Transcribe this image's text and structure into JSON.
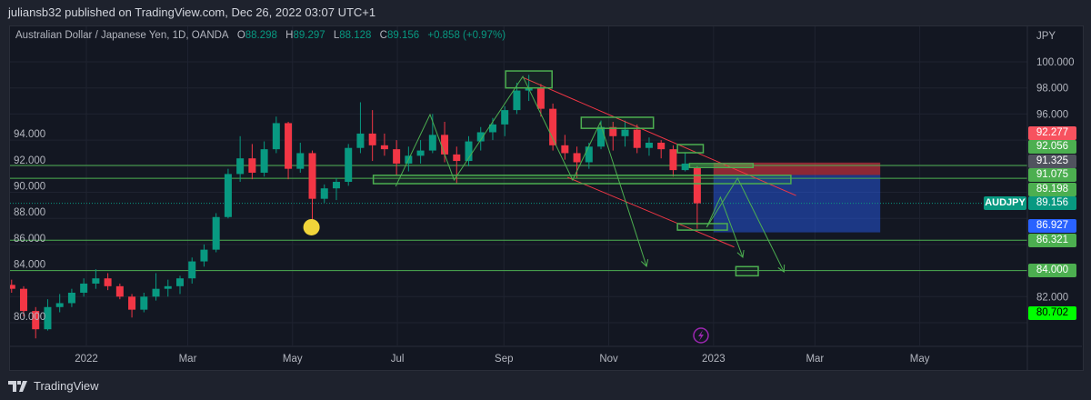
{
  "header": {
    "publisher_line": "juliansb32 published on TradingView.com, Dec 26, 2022 03:07 UTC+1"
  },
  "legend": {
    "title": "Australian Dollar / Japanese Yen, 1D, OANDA",
    "open_key": "O",
    "open": "88.298",
    "high_key": "H",
    "high": "89.297",
    "low_key": "L",
    "low": "88.128",
    "close_key": "C",
    "close": "89.156",
    "change": "+0.858 (+0.97%)"
  },
  "footer": {
    "brand": "TradingView"
  },
  "colors": {
    "up": "#089981",
    "down": "#f23645",
    "drawing": "#4caf50",
    "trend": "#f23645",
    "background": "#131722"
  },
  "chart_data": {
    "type": "candlestick",
    "currency_label": "JPY",
    "symbol": "AUDJPY",
    "last_price": "89.156",
    "ylim": [
      79.7,
      101.3
    ],
    "yticks": [
      "80.000",
      "82.000",
      "84.000",
      "86.000",
      "88.000",
      "90.000",
      "92.000",
      "94.000",
      "96.000",
      "98.000",
      "100.000"
    ],
    "xticks": [
      {
        "label": "2022",
        "date": "2022-01-01"
      },
      {
        "label": "Mar",
        "date": "2022-03-01"
      },
      {
        "label": "May",
        "date": "2022-05-01"
      },
      {
        "label": "Jul",
        "date": "2022-07-01"
      },
      {
        "label": "Sep",
        "date": "2022-09-01"
      },
      {
        "label": "Nov",
        "date": "2022-11-01"
      },
      {
        "label": "2023",
        "date": "2023-01-01"
      },
      {
        "label": "Mar",
        "date": "2023-03-01"
      },
      {
        "label": "May",
        "date": "2023-05-01"
      }
    ],
    "candles_weekly_start": "2021-11-15",
    "candles": [
      [
        82.9,
        83.3,
        82.3,
        82.6
      ],
      [
        82.6,
        82.8,
        80.5,
        80.9
      ],
      [
        80.9,
        81.2,
        78.8,
        79.5
      ],
      [
        79.5,
        81.8,
        79.4,
        81.2
      ],
      [
        81.2,
        82.2,
        80.8,
        81.5
      ],
      [
        81.5,
        82.6,
        81.2,
        82.3
      ],
      [
        82.3,
        83.4,
        82.0,
        83.0
      ],
      [
        83.0,
        84.1,
        82.6,
        83.4
      ],
      [
        83.4,
        83.8,
        82.5,
        82.8
      ],
      [
        82.8,
        83.0,
        81.8,
        82.0
      ],
      [
        82.0,
        82.2,
        80.4,
        81.0
      ],
      [
        81.0,
        82.3,
        80.8,
        82.0
      ],
      [
        82.0,
        83.8,
        81.7,
        82.6
      ],
      [
        82.6,
        83.3,
        82.0,
        82.8
      ],
      [
        82.8,
        83.6,
        82.2,
        83.4
      ],
      [
        83.4,
        85.0,
        83.0,
        84.7
      ],
      [
        84.7,
        86.0,
        84.3,
        85.6
      ],
      [
        85.6,
        88.4,
        85.4,
        88.1
      ],
      [
        88.1,
        91.8,
        88.0,
        91.4
      ],
      [
        91.4,
        94.3,
        90.8,
        92.6
      ],
      [
        92.6,
        93.7,
        91.0,
        91.5
      ],
      [
        91.5,
        93.9,
        91.2,
        93.3
      ],
      [
        93.3,
        95.8,
        93.0,
        95.3
      ],
      [
        95.3,
        95.4,
        91.0,
        91.8
      ],
      [
        91.8,
        93.8,
        91.5,
        93.0
      ],
      [
        93.0,
        93.2,
        87.9,
        89.5
      ],
      [
        89.5,
        90.6,
        89.2,
        90.3
      ],
      [
        90.3,
        91.1,
        89.4,
        90.8
      ],
      [
        90.8,
        93.7,
        90.5,
        93.4
      ],
      [
        93.4,
        96.9,
        93.0,
        94.5
      ],
      [
        94.5,
        96.3,
        92.4,
        93.6
      ],
      [
        93.6,
        94.5,
        92.8,
        93.3
      ],
      [
        93.3,
        94.0,
        91.3,
        92.2
      ],
      [
        92.2,
        93.5,
        91.6,
        92.8
      ],
      [
        92.8,
        94.0,
        92.2,
        93.2
      ],
      [
        93.2,
        96.0,
        93.0,
        94.4
      ],
      [
        94.4,
        95.4,
        92.3,
        92.9
      ],
      [
        92.9,
        93.5,
        90.7,
        92.4
      ],
      [
        92.4,
        94.3,
        92.0,
        93.9
      ],
      [
        93.9,
        95.0,
        93.2,
        94.6
      ],
      [
        94.6,
        95.7,
        94.0,
        95.2
      ],
      [
        95.2,
        96.6,
        94.3,
        96.3
      ],
      [
        96.3,
        98.4,
        96.0,
        97.8
      ],
      [
        97.8,
        99.0,
        97.0,
        98.0
      ],
      [
        98.0,
        98.3,
        95.8,
        96.4
      ],
      [
        96.4,
        96.8,
        93.2,
        93.6
      ],
      [
        93.6,
        94.4,
        92.5,
        93.0
      ],
      [
        93.0,
        93.5,
        91.1,
        92.3
      ],
      [
        92.3,
        93.8,
        91.8,
        93.5
      ],
      [
        93.5,
        95.5,
        93.3,
        95.0
      ],
      [
        95.0,
        95.4,
        93.2,
        94.3
      ],
      [
        94.3,
        95.5,
        93.5,
        94.8
      ],
      [
        94.8,
        95.2,
        93.0,
        93.4
      ],
      [
        93.4,
        94.2,
        92.8,
        93.8
      ],
      [
        93.8,
        94.0,
        92.6,
        93.3
      ],
      [
        93.3,
        93.6,
        91.2,
        91.7
      ],
      [
        91.7,
        93.0,
        91.6,
        92.2
      ],
      [
        91.9,
        92.0,
        87.2,
        89.156
      ]
    ],
    "horizontal_lines": [
      92.056,
      91.075,
      86.321,
      84.0
    ],
    "price_labels": [
      {
        "value": "92.277",
        "color": "#f7525f",
        "text_color": "#ffffff"
      },
      {
        "value": "92.056",
        "color": "#4caf50",
        "text_color": "#ffffff"
      },
      {
        "value": "91.325",
        "color": "#50535e",
        "text_color": "#ffffff"
      },
      {
        "value": "91.075",
        "color": "#4caf50",
        "text_color": "#ffffff"
      },
      {
        "value": "89.198",
        "color": "#4caf50",
        "text_color": "#ffffff"
      },
      {
        "value": "89.156",
        "color": "#089981",
        "text_color": "#ffffff"
      },
      {
        "value": "86.927",
        "color": "#2962ff",
        "text_color": "#ffffff"
      },
      {
        "value": "86.321",
        "color": "#4caf50",
        "text_color": "#ffffff"
      },
      {
        "value": "84.000",
        "color": "#4caf50",
        "text_color": "#ffffff"
      },
      {
        "value": "80.702",
        "color": "#00ff00",
        "text_color": "#000000"
      }
    ],
    "position": {
      "start": "2023-01-01",
      "end": "2023-04-08",
      "stop": 92.277,
      "entry": 91.325,
      "target": 86.927
    },
    "rectangles": [
      {
        "from": "2022-09-02",
        "to": "2022-09-29",
        "top": 99.3,
        "bottom": 98.0
      },
      {
        "from": "2022-10-16",
        "to": "2022-11-27",
        "top": 95.75,
        "bottom": 94.9
      },
      {
        "from": "2022-12-11",
        "to": "2022-12-26",
        "top": 93.66,
        "bottom": 93.03
      },
      {
        "from": "2022-06-17",
        "to": "2023-02-15",
        "top": 91.3,
        "bottom": 90.66
      },
      {
        "from": "2022-12-18",
        "to": "2023-01-24",
        "top": 92.2,
        "bottom": 91.9
      },
      {
        "from": "2022-12-11",
        "to": "2023-01-09",
        "top": 87.6,
        "bottom": 87.1
      },
      {
        "from": "2023-01-14",
        "to": "2023-01-27",
        "top": 84.3,
        "bottom": 83.6
      }
    ],
    "trend_lines": [
      [
        [
          "2022-09-12",
          98.8
        ],
        [
          "2023-02-18",
          89.75
        ]
      ],
      [
        [
          "2022-10-08",
          91.15
        ],
        [
          "2023-01-13",
          85.8
        ]
      ]
    ],
    "paths": [
      {
        "points": [
          [
            "2022-06-30",
            90.45
          ],
          [
            "2022-07-20",
            95.96
          ],
          [
            "2022-08-03",
            90.94
          ],
          [
            "2022-09-12",
            98.88
          ],
          [
            "2022-10-11",
            90.94
          ],
          [
            "2022-10-27",
            95.33
          ],
          [
            "2022-11-23",
            84.32
          ]
        ],
        "arrow": true
      },
      {
        "points": [
          [
            "2022-12-28",
            87.32
          ],
          [
            "2023-01-05",
            89.62
          ],
          [
            "2023-01-18",
            85.02
          ]
        ],
        "arrow": true
      },
      {
        "points": [
          [
            "2022-12-28",
            87.32
          ],
          [
            "2023-01-15",
            91.08
          ],
          [
            "2023-02-11",
            83.9
          ]
        ],
        "arrow": true
      }
    ],
    "marker": {
      "date": "2022-05-12",
      "price": 87.32,
      "color": "#f0d43a"
    }
  }
}
